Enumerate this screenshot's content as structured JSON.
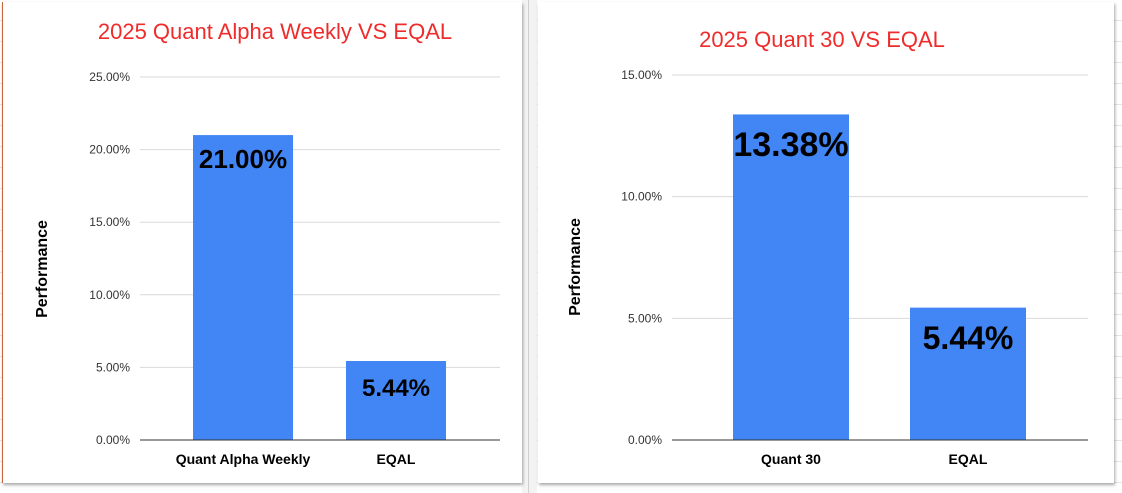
{
  "colors": {
    "bar": "#4285f4",
    "title": "#ee2c2c",
    "grid": "#d9d9d9",
    "axis": "#333333",
    "label": "#000000"
  },
  "chart_data": [
    {
      "type": "bar",
      "title": "2025 Quant Alpha Weekly VS EQAL",
      "xlabel": "",
      "ylabel": "Performance",
      "categories": [
        "Quant Alpha Weekly",
        "EQAL"
      ],
      "values": [
        21.0,
        5.44
      ],
      "data_labels": [
        "21.00%",
        "5.44%"
      ],
      "yticks": [
        0,
        5,
        10,
        15,
        20,
        25
      ],
      "ytick_labels": [
        "0.00%",
        "5.00%",
        "10.00%",
        "15.00%",
        "20.00%",
        "25.00%"
      ],
      "ylim": [
        0,
        25
      ],
      "grid": true,
      "legend": "none"
    },
    {
      "type": "bar",
      "title": "2025 Quant 30 VS EQAL",
      "xlabel": "",
      "ylabel": "Performance",
      "categories": [
        "Quant 30",
        "EQAL"
      ],
      "values": [
        13.38,
        5.44
      ],
      "data_labels": [
        "13.38%",
        "5.44%"
      ],
      "yticks": [
        0,
        5,
        10,
        15
      ],
      "ytick_labels": [
        "0.00%",
        "5.00%",
        "10.00%",
        "15.00%"
      ],
      "ylim": [
        0,
        15
      ],
      "grid": true,
      "legend": "none"
    }
  ]
}
